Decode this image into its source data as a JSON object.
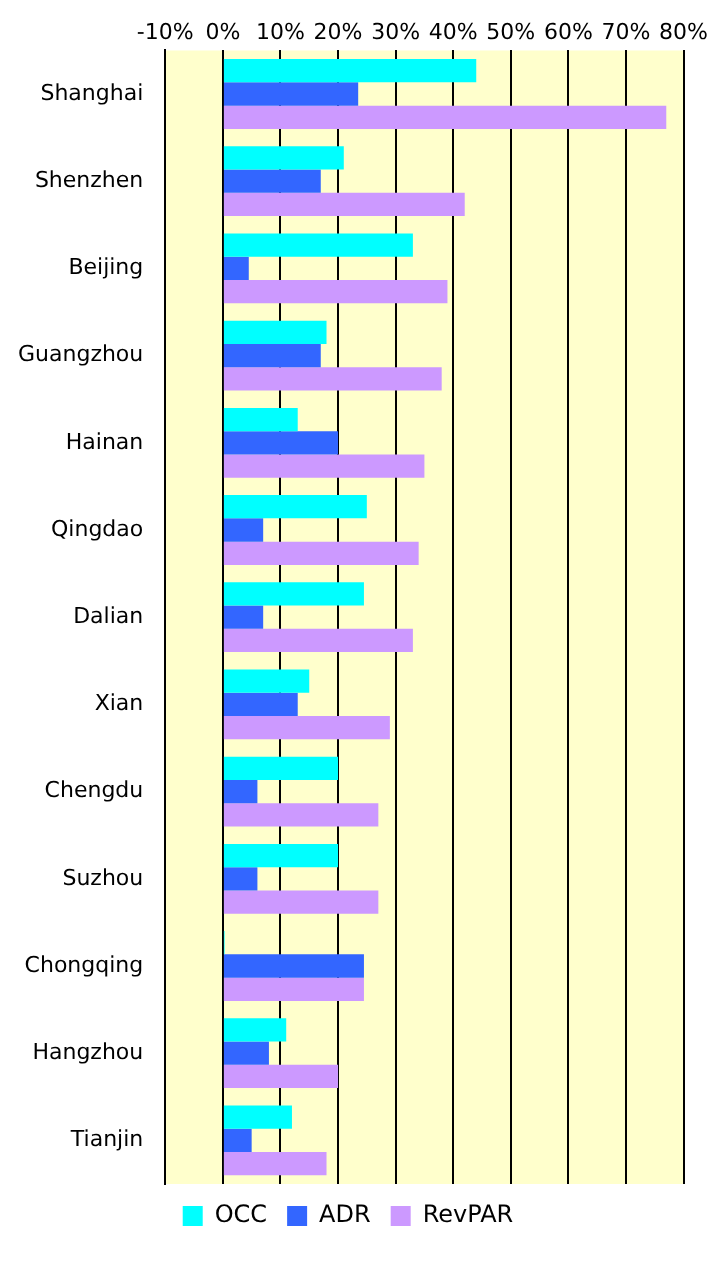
{
  "chart_data": {
    "type": "bar",
    "orientation": "horizontal",
    "categories": [
      "Shanghai",
      "Shenzhen",
      "Beijing",
      "Guangzhou",
      "Hainan",
      "Qingdao",
      "Dalian",
      "Xian",
      "Chengdu",
      "Suzhou",
      "Chongqing",
      "Hangzhou",
      "Tianjin"
    ],
    "series": [
      {
        "name": "OCC",
        "color": "#00ffff",
        "values": [
          44,
          21,
          33,
          18,
          13,
          25,
          24.5,
          15,
          20,
          20,
          0.3,
          11,
          12
        ]
      },
      {
        "name": "ADR",
        "color": "#3366ff",
        "values": [
          23.5,
          17,
          4.5,
          17,
          20,
          7,
          7,
          13,
          6,
          6,
          24.5,
          8,
          5
        ]
      },
      {
        "name": "RevPAR",
        "color": "#cc99ff",
        "values": [
          77,
          42,
          39,
          38,
          35,
          34,
          33,
          29,
          27,
          27,
          24.5,
          20,
          18
        ]
      }
    ],
    "xlim": [
      -10,
      80
    ],
    "xticks": [
      {
        "value": -10,
        "label": "-10%"
      },
      {
        "value": 0,
        "label": "0%"
      },
      {
        "value": 10,
        "label": "10%"
      },
      {
        "value": 20,
        "label": "20%"
      },
      {
        "value": 30,
        "label": "30%"
      },
      {
        "value": 40,
        "label": "40%"
      },
      {
        "value": 50,
        "label": "50%"
      },
      {
        "value": 60,
        "label": "60%"
      },
      {
        "value": 70,
        "label": "70%"
      },
      {
        "value": 80,
        "label": "80%"
      }
    ],
    "grid": "x",
    "legend": "bottom"
  }
}
